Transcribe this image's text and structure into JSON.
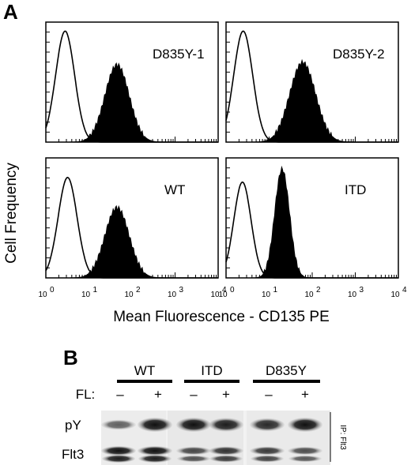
{
  "panel_a": {
    "letter": "A",
    "ylabel": "Cell Frequency",
    "xlabel": "Mean Fluorescence - CD135 PE",
    "x_ticks": [
      "10",
      "10",
      "10",
      "10",
      "10"
    ],
    "x_tick_exps": [
      "0",
      "1",
      "2",
      "3",
      "4"
    ]
  },
  "panel_b": {
    "letter": "B",
    "groups": [
      "WT",
      "ITD",
      "D835Y"
    ],
    "fl_label": "FL:",
    "fl_states": [
      "–",
      "+",
      "–",
      "+",
      "–",
      "+"
    ],
    "rows": [
      "pY",
      "Flt3"
    ],
    "ip_label": "IP: Flt3"
  },
  "chart_data": [
    {
      "type": "area",
      "title": "D835Y-1",
      "xlabel": "Mean Fluorescence - CD135 PE",
      "ylabel": "Cell Frequency",
      "x_scale": "log",
      "xlim": [
        1,
        10000
      ],
      "series": [
        {
          "style": "open",
          "peak_x": 2.8,
          "peak_y": 0.95,
          "width_decades": 0.22
        },
        {
          "style": "filled",
          "peak_x": 45,
          "peak_y": 0.66,
          "width_decades": 0.28
        }
      ]
    },
    {
      "type": "area",
      "title": "D835Y-2",
      "xlabel": "Mean Fluorescence - CD135 PE",
      "ylabel": "Cell Frequency",
      "x_scale": "log",
      "xlim": [
        1,
        10000
      ],
      "series": [
        {
          "style": "open",
          "peak_x": 2.5,
          "peak_y": 0.95,
          "width_decades": 0.22
        },
        {
          "style": "filled",
          "peak_x": 60,
          "peak_y": 0.68,
          "width_decades": 0.3
        }
      ]
    },
    {
      "type": "area",
      "title": "WT",
      "xlabel": "Mean Fluorescence - CD135 PE",
      "ylabel": "Cell Frequency",
      "x_scale": "log",
      "xlim": [
        1,
        10000
      ],
      "series": [
        {
          "style": "open",
          "peak_x": 3.2,
          "peak_y": 0.86,
          "width_decades": 0.22
        },
        {
          "style": "filled",
          "peak_x": 45,
          "peak_y": 0.6,
          "width_decades": 0.28
        }
      ]
    },
    {
      "type": "area",
      "title": "ITD",
      "xlabel": "Mean Fluorescence - CD135 PE",
      "ylabel": "Cell Frequency",
      "x_scale": "log",
      "xlim": [
        1,
        10000
      ],
      "series": [
        {
          "style": "open",
          "peak_x": 2.4,
          "peak_y": 0.82,
          "width_decades": 0.2
        },
        {
          "style": "filled",
          "peak_x": 20,
          "peak_y": 0.93,
          "width_decades": 0.17
        }
      ]
    }
  ]
}
